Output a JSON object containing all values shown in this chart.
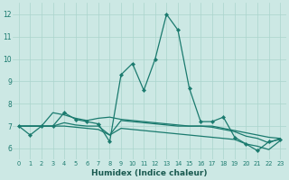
{
  "xlabel": "Humidex (Indice chaleur)",
  "ylabel": "",
  "bg_color": "#cce8e4",
  "grid_color": "#aad4cc",
  "line_color": "#1a7a6e",
  "tick_color": "#1a7a6e",
  "xlabel_color": "#1a5a50",
  "xlim": [
    -0.5,
    23.5
  ],
  "ylim": [
    5.5,
    12.5
  ],
  "yticks": [
    6,
    7,
    8,
    9,
    10,
    11,
    12
  ],
  "xticks": [
    0,
    1,
    2,
    3,
    4,
    5,
    6,
    7,
    8,
    9,
    10,
    11,
    12,
    13,
    14,
    15,
    16,
    17,
    18,
    19,
    20,
    21,
    22,
    23
  ],
  "line1_x": [
    0,
    1,
    2,
    3,
    4,
    5,
    6,
    7,
    8,
    9,
    10,
    11,
    12,
    13,
    14,
    15,
    16,
    17,
    18,
    19,
    20,
    21,
    22,
    23
  ],
  "line1_y": [
    7.0,
    6.6,
    7.0,
    7.0,
    7.6,
    7.3,
    7.2,
    7.1,
    6.3,
    9.3,
    9.8,
    8.6,
    10.0,
    12.0,
    11.3,
    8.7,
    7.2,
    7.2,
    7.4,
    6.5,
    6.2,
    5.9,
    6.3,
    6.4
  ],
  "line2_x": [
    0,
    1,
    2,
    3,
    4,
    5,
    6,
    7,
    8,
    9,
    10,
    11,
    12,
    13,
    14,
    15,
    16,
    17,
    18,
    19,
    20,
    21,
    22,
    23
  ],
  "line2_y": [
    7.0,
    7.0,
    7.0,
    7.6,
    7.5,
    7.35,
    7.25,
    7.35,
    7.4,
    7.3,
    7.25,
    7.2,
    7.15,
    7.1,
    7.05,
    7.0,
    7.0,
    7.0,
    6.9,
    6.8,
    6.7,
    6.6,
    6.5,
    6.45
  ],
  "line3_x": [
    0,
    1,
    2,
    3,
    4,
    5,
    6,
    7,
    8,
    9,
    10,
    11,
    12,
    13,
    14,
    15,
    16,
    17,
    18,
    19,
    20,
    21,
    22,
    23
  ],
  "line3_y": [
    7.0,
    7.0,
    7.0,
    7.0,
    7.15,
    7.05,
    7.0,
    7.0,
    6.6,
    7.25,
    7.2,
    7.15,
    7.1,
    7.05,
    7.0,
    7.0,
    7.0,
    6.95,
    6.85,
    6.75,
    6.55,
    6.45,
    6.25,
    6.45
  ],
  "line4_x": [
    0,
    1,
    2,
    3,
    4,
    5,
    6,
    7,
    8,
    9,
    10,
    11,
    12,
    13,
    14,
    15,
    16,
    17,
    18,
    19,
    20,
    21,
    22,
    23
  ],
  "line4_y": [
    7.0,
    7.0,
    7.0,
    7.0,
    7.0,
    6.95,
    6.9,
    6.85,
    6.6,
    6.9,
    6.85,
    6.8,
    6.75,
    6.7,
    6.65,
    6.6,
    6.55,
    6.5,
    6.45,
    6.4,
    6.2,
    6.1,
    5.95,
    6.35
  ]
}
